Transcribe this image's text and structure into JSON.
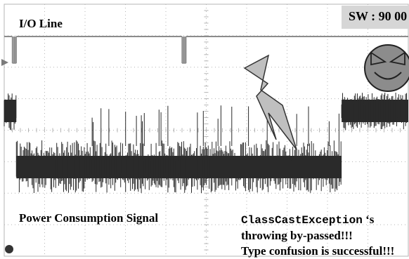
{
  "chart_data": {
    "type": "line",
    "title": "",
    "xlabel": "",
    "ylabel": "",
    "grid": true,
    "series": [
      {
        "name": "I/O Line",
        "segments": [
          {
            "from": 0.0,
            "to": 0.2,
            "level": "high"
          },
          {
            "from": 0.2,
            "to": 0.3,
            "level": "burst"
          },
          {
            "from": 0.3,
            "to": 4.4,
            "level": "high"
          },
          {
            "from": 4.4,
            "to": 4.5,
            "level": "burst"
          },
          {
            "from": 4.5,
            "to": 10.0,
            "level": "high"
          }
        ]
      },
      {
        "name": "Power Consumption Signal",
        "segments": [
          {
            "from": 0.0,
            "to": 0.3,
            "level": "high"
          },
          {
            "from": 0.3,
            "to": 8.35,
            "level": "low"
          },
          {
            "from": 8.35,
            "to": 10.0,
            "level": "high"
          }
        ]
      }
    ],
    "annotations": {
      "sw_status": "SW : 90 00",
      "exception_name": "ClassCastException",
      "exception_suffix": " ‘s",
      "bypass_text": "throwing by-passed!!!",
      "result_text": "Type confusion is successful!!!"
    }
  },
  "colors": {
    "grid": "#b4b4b4",
    "io_trace": "#8c8c8c",
    "power_trace": "#2a2a2a",
    "lightning_fill": "#bfbfbf",
    "face_fill": "#8c8c8c",
    "sw_badge_bg": "#d6d6d6",
    "marker": "#7a7a7a"
  },
  "icons": {
    "lightning": "lightning-bolt-icon",
    "face": "devil-face-icon"
  }
}
